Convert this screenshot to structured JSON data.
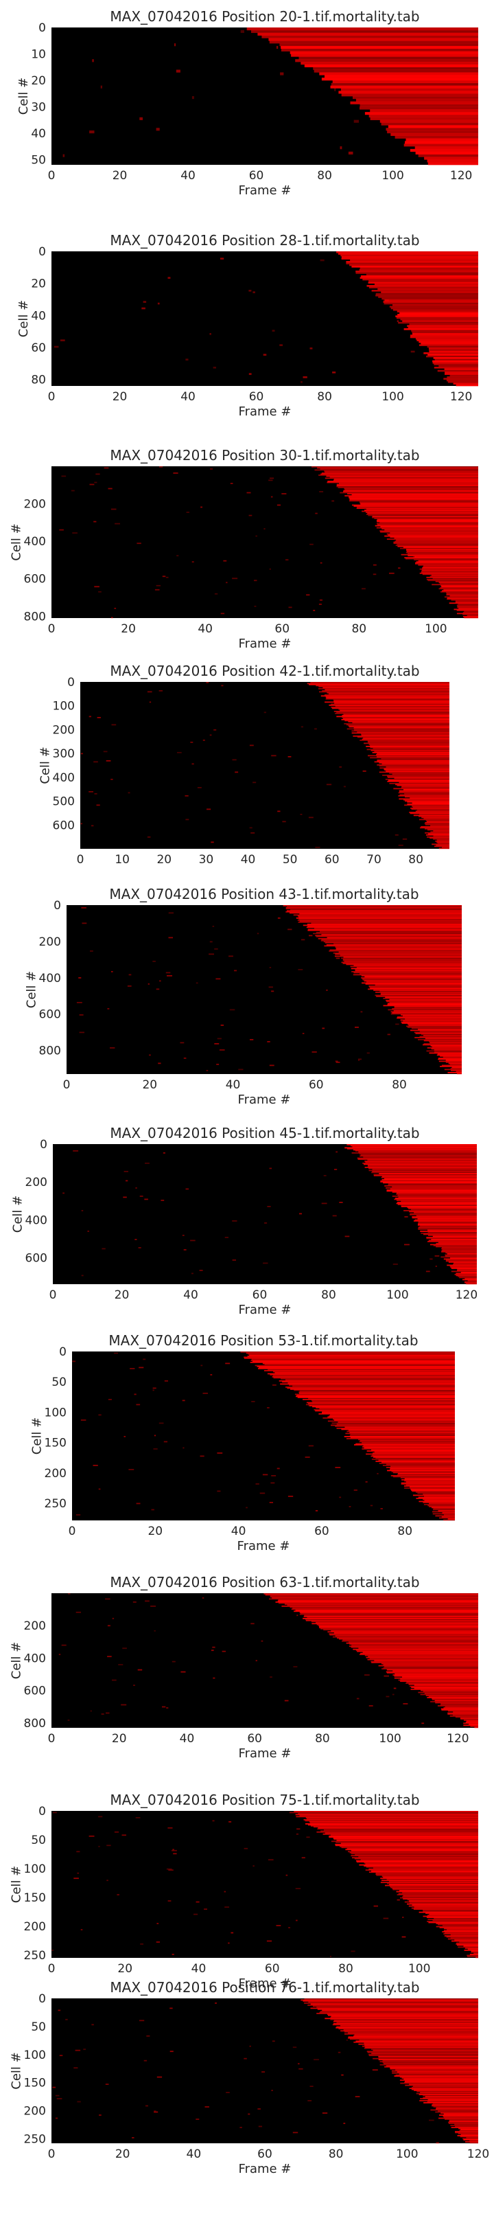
{
  "chart_data": [
    {
      "type": "heatmap",
      "title": "MAX_07042016 Position 20-1.tif.mortality.tab",
      "xlabel": "Frame #",
      "ylabel": "Cell #",
      "xlim": [
        0,
        125
      ],
      "ylim": [
        52,
        0
      ],
      "xticks": [
        0,
        20,
        40,
        60,
        80,
        100,
        120
      ],
      "yticks": [
        0,
        10,
        20,
        30,
        40,
        50
      ],
      "n_cells": 52,
      "death_frame_range": [
        58,
        112
      ],
      "colormap": [
        "#000000",
        "#ff0000"
      ]
    },
    {
      "type": "heatmap",
      "title": "MAX_07042016 Position 28-1.tif.mortality.tab",
      "xlabel": "Frame #",
      "ylabel": "Cell #",
      "xlim": [
        0,
        125
      ],
      "ylim": [
        84,
        0
      ],
      "xticks": [
        0,
        20,
        40,
        60,
        80,
        100,
        120
      ],
      "yticks": [
        0,
        20,
        40,
        60,
        80
      ],
      "n_cells": 84,
      "death_frame_range": [
        84,
        118
      ],
      "colormap": [
        "#000000",
        "#ff0000"
      ]
    },
    {
      "type": "heatmap",
      "title": "MAX_07042016 Position 30-1.tif.mortality.tab",
      "xlabel": "Frame #",
      "ylabel": "Cell #",
      "xlim": [
        0,
        111
      ],
      "ylim": [
        810,
        0
      ],
      "xticks": [
        0,
        20,
        40,
        60,
        80,
        100
      ],
      "yticks": [
        200,
        400,
        600,
        800
      ],
      "n_cells": 810,
      "death_frame_range": [
        68,
        108
      ],
      "colormap": [
        "#000000",
        "#ff0000"
      ]
    },
    {
      "type": "heatmap",
      "title": "MAX_07042016 Position 42-1.tif.mortality.tab",
      "xlabel": "",
      "ylabel": "Cell #",
      "xlim": [
        0,
        88
      ],
      "ylim": [
        700,
        0
      ],
      "xticks": [
        0,
        10,
        20,
        30,
        40,
        50,
        60,
        70,
        80
      ],
      "yticks": [
        0,
        100,
        200,
        300,
        400,
        500,
        600
      ],
      "n_cells": 700,
      "death_frame_range": [
        55,
        86
      ],
      "colormap": [
        "#000000",
        "#ff0000"
      ]
    },
    {
      "type": "heatmap",
      "title": "MAX_07042016 Position 43-1.tif.mortality.tab",
      "xlabel": "Frame #",
      "ylabel": "Cell #",
      "xlim": [
        0,
        95
      ],
      "ylim": [
        930,
        0
      ],
      "xticks": [
        0,
        20,
        40,
        60,
        80
      ],
      "yticks": [
        0,
        200,
        400,
        600,
        800
      ],
      "n_cells": 930,
      "death_frame_range": [
        52,
        93
      ],
      "colormap": [
        "#000000",
        "#ff0000"
      ]
    },
    {
      "type": "heatmap",
      "title": "MAX_07042016 Position 45-1.tif.mortality.tab",
      "xlabel": "Frame #",
      "ylabel": "Cell #",
      "xlim": [
        0,
        123
      ],
      "ylim": [
        740,
        0
      ],
      "xticks": [
        0,
        20,
        40,
        60,
        80,
        100,
        120
      ],
      "yticks": [
        0,
        200,
        400,
        600
      ],
      "n_cells": 740,
      "death_frame_range": [
        85,
        120
      ],
      "colormap": [
        "#000000",
        "#ff0000"
      ]
    },
    {
      "type": "heatmap",
      "title": "MAX_07042016 Position 53-1.tif.mortality.tab",
      "xlabel": "Frame #",
      "ylabel": "Cell #",
      "xlim": [
        0,
        92
      ],
      "ylim": [
        278,
        0
      ],
      "xticks": [
        0,
        20,
        40,
        60,
        80
      ],
      "yticks": [
        0,
        50,
        100,
        150,
        200,
        250
      ],
      "n_cells": 278,
      "death_frame_range": [
        40,
        90
      ],
      "colormap": [
        "#000000",
        "#ff0000"
      ]
    },
    {
      "type": "heatmap",
      "title": "MAX_07042016 Position 63-1.tif.mortality.tab",
      "xlabel": "Frame #",
      "ylabel": "Cell #",
      "xlim": [
        0,
        126
      ],
      "ylim": [
        830,
        0
      ],
      "xticks": [
        0,
        20,
        40,
        60,
        80,
        100,
        120
      ],
      "yticks": [
        200,
        400,
        600,
        800
      ],
      "n_cells": 830,
      "death_frame_range": [
        62,
        124
      ],
      "colormap": [
        "#000000",
        "#ff0000"
      ]
    },
    {
      "type": "heatmap",
      "title": "MAX_07042016 Position 75-1.tif.mortality.tab",
      "xlabel": "Frame #",
      "ylabel": "Cell #",
      "xlim": [
        0,
        116
      ],
      "ylim": [
        255,
        0
      ],
      "xticks": [
        0,
        20,
        40,
        60,
        80,
        100,
        120
      ],
      "yticks": [
        0,
        50,
        100,
        150,
        200,
        250
      ],
      "n_cells": 255,
      "death_frame_range": [
        65,
        115
      ],
      "colormap": [
        "#000000",
        "#ff0000"
      ]
    },
    {
      "type": "heatmap",
      "title": "MAX_07042016 Position 76-1.tif.mortality.tab",
      "xlabel": "Frame #",
      "ylabel": "Cell #",
      "xlim": [
        0,
        120
      ],
      "ylim": [
        258,
        0
      ],
      "xticks": [
        0,
        20,
        40,
        60,
        80,
        100,
        120
      ],
      "yticks": [
        0,
        50,
        100,
        150,
        200,
        250
      ],
      "n_cells": 258,
      "death_frame_range": [
        70,
        118
      ],
      "colormap": [
        "#000000",
        "#ff0000"
      ]
    }
  ]
}
